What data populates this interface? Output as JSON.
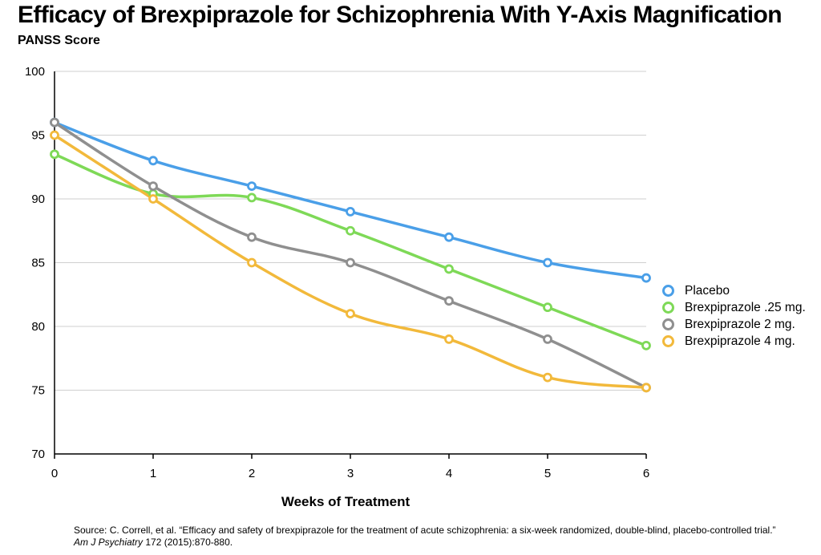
{
  "title": "Efficacy of Brexpiprazole for Schizophrenia With Y-Axis Magnification",
  "chart_data": {
    "type": "line",
    "title": "Efficacy of Brexpiprazole for Schizophrenia With Y-Axis Magnification",
    "ylabel": "PANSS Score",
    "xlabel": "Weeks of Treatment",
    "x": [
      0,
      1,
      2,
      3,
      4,
      5,
      6
    ],
    "xticks": [
      "0",
      "1",
      "2",
      "3",
      "4",
      "5",
      "6"
    ],
    "yticks": [
      "70",
      "75",
      "80",
      "85",
      "90",
      "95",
      "100"
    ],
    "ylim": [
      70,
      100
    ],
    "xlim": [
      0,
      6
    ],
    "grid": "horizontal",
    "legend_position": "right",
    "series": [
      {
        "name": "Placebo",
        "color": "#4a9fe8",
        "values": [
          96,
          93,
          91,
          89,
          87,
          85,
          83.8
        ]
      },
      {
        "name": "Brexpiprazole .25 mg.",
        "color": "#7ed957",
        "values": [
          93.5,
          90.4,
          90.1,
          87.5,
          84.5,
          81.5,
          78.5
        ]
      },
      {
        "name": "Brexpiprazole 2 mg.",
        "color": "#8f8f8f",
        "values": [
          96,
          91,
          87,
          85,
          82,
          79,
          75.2
        ]
      },
      {
        "name": "Brexpiprazole 4 mg.",
        "color": "#f2b93b",
        "values": [
          95,
          90,
          85,
          81,
          79,
          76,
          75.2
        ]
      }
    ]
  },
  "source": {
    "prefix": "Source: C. Correll, et al. “Efficacy and safety of brexpiprazole for the treatment of acute schizophrenia: a six-week randomized, double-blind, placebo-controlled trial.” ",
    "journal": "Am J Psychiatry",
    "suffix": " 172 (2015):870-880."
  }
}
